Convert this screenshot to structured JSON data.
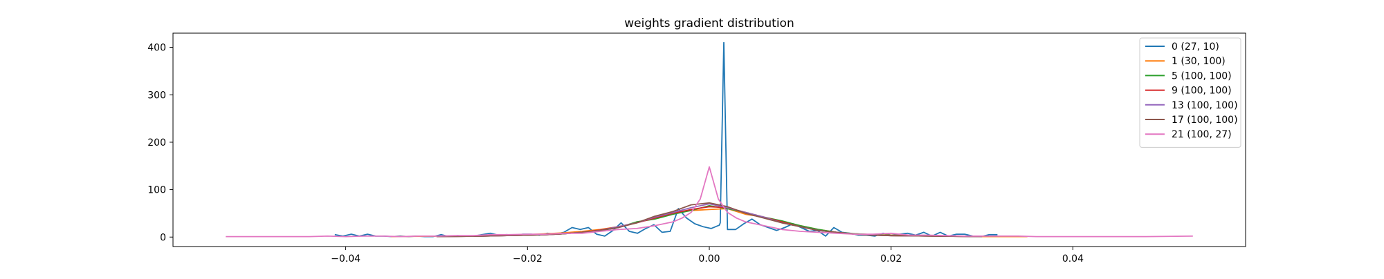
{
  "chart_data": {
    "type": "line",
    "title": "weights gradient distribution",
    "xlabel": "",
    "ylabel": "",
    "xlim": [
      -0.059,
      0.059
    ],
    "ylim": [
      -20,
      430
    ],
    "x_ticks": [
      -0.04,
      -0.02,
      0.0,
      0.02,
      0.04
    ],
    "x_tick_labels": [
      "−0.04",
      "−0.02",
      "0.00",
      "0.02",
      "0.04"
    ],
    "y_ticks": [
      0,
      100,
      200,
      300,
      400
    ],
    "y_tick_labels": [
      "0",
      "100",
      "200",
      "300",
      "400"
    ],
    "grid": false,
    "legend_position": "top-right",
    "series": [
      {
        "name": "0  (27, 10)",
        "color": "#1f77b4",
        "points": [
          [
            -0.0412,
            5
          ],
          [
            -0.0403,
            2
          ],
          [
            -0.0394,
            6
          ],
          [
            -0.0385,
            2
          ],
          [
            -0.0376,
            6
          ],
          [
            -0.0367,
            2
          ],
          [
            -0.0358,
            2
          ],
          [
            -0.0349,
            1
          ],
          [
            -0.034,
            2
          ],
          [
            -0.0331,
            1
          ],
          [
            -0.0322,
            2
          ],
          [
            -0.0313,
            1
          ],
          [
            -0.0304,
            1
          ],
          [
            -0.0295,
            5
          ],
          [
            -0.0286,
            1
          ],
          [
            -0.0277,
            3
          ],
          [
            -0.0268,
            2
          ],
          [
            -0.0259,
            2
          ],
          [
            -0.025,
            5
          ],
          [
            -0.0241,
            8
          ],
          [
            -0.0232,
            4
          ],
          [
            -0.0223,
            5
          ],
          [
            -0.0214,
            4
          ],
          [
            -0.0205,
            6
          ],
          [
            -0.0196,
            6
          ],
          [
            -0.0187,
            4
          ],
          [
            -0.0178,
            8
          ],
          [
            -0.0169,
            6
          ],
          [
            -0.016,
            10
          ],
          [
            -0.0151,
            20
          ],
          [
            -0.0142,
            16
          ],
          [
            -0.0133,
            20
          ],
          [
            -0.0124,
            6
          ],
          [
            -0.0115,
            2
          ],
          [
            -0.0106,
            14
          ],
          [
            -0.0097,
            30
          ],
          [
            -0.0088,
            12
          ],
          [
            -0.0079,
            8
          ],
          [
            -0.007,
            18
          ],
          [
            -0.0061,
            26
          ],
          [
            -0.0052,
            10
          ],
          [
            -0.0043,
            12
          ],
          [
            -0.0034,
            60
          ],
          [
            -0.0025,
            40
          ],
          [
            -0.0016,
            28
          ],
          [
            -0.0007,
            22
          ],
          [
            0.0002,
            18
          ],
          [
            0.0011,
            25
          ],
          [
            0.0012,
            30
          ],
          [
            0.0016,
            410
          ],
          [
            0.002,
            16
          ],
          [
            0.0029,
            16
          ],
          [
            0.0038,
            28
          ],
          [
            0.0047,
            38
          ],
          [
            0.0056,
            26
          ],
          [
            0.0065,
            20
          ],
          [
            0.0074,
            14
          ],
          [
            0.0083,
            20
          ],
          [
            0.0092,
            28
          ],
          [
            0.0101,
            20
          ],
          [
            0.011,
            12
          ],
          [
            0.0119,
            14
          ],
          [
            0.0128,
            2
          ],
          [
            0.0137,
            20
          ],
          [
            0.0146,
            10
          ],
          [
            0.0155,
            8
          ],
          [
            0.0164,
            4
          ],
          [
            0.0173,
            4
          ],
          [
            0.0182,
            2
          ],
          [
            0.0191,
            8
          ],
          [
            0.02,
            4
          ],
          [
            0.0209,
            6
          ],
          [
            0.0218,
            8
          ],
          [
            0.0227,
            4
          ],
          [
            0.0236,
            10
          ],
          [
            0.0245,
            2
          ],
          [
            0.0254,
            10
          ],
          [
            0.0263,
            2
          ],
          [
            0.0272,
            6
          ],
          [
            0.0281,
            6
          ],
          [
            0.029,
            2
          ],
          [
            0.0299,
            1
          ],
          [
            0.0308,
            5
          ],
          [
            0.0317,
            5
          ]
        ]
      },
      {
        "name": "1  (30, 100)",
        "color": "#ff7f0e",
        "points": [
          [
            -0.035,
            1
          ],
          [
            -0.03,
            2
          ],
          [
            -0.025,
            3
          ],
          [
            -0.02,
            5
          ],
          [
            -0.018,
            7
          ],
          [
            -0.016,
            9
          ],
          [
            -0.014,
            12
          ],
          [
            -0.012,
            16
          ],
          [
            -0.01,
            22
          ],
          [
            -0.008,
            30
          ],
          [
            -0.006,
            42
          ],
          [
            -0.004,
            50
          ],
          [
            -0.002,
            56
          ],
          [
            0.0,
            58
          ],
          [
            0.002,
            60
          ],
          [
            0.004,
            48
          ],
          [
            0.006,
            42
          ],
          [
            0.008,
            32
          ],
          [
            0.01,
            24
          ],
          [
            0.012,
            16
          ],
          [
            0.014,
            10
          ],
          [
            0.016,
            7
          ],
          [
            0.018,
            5
          ],
          [
            0.02,
            4
          ],
          [
            0.025,
            2
          ],
          [
            0.03,
            1
          ],
          [
            0.035,
            1
          ]
        ]
      },
      {
        "name": "5  (100, 100)",
        "color": "#2ca02c",
        "points": [
          [
            -0.03,
            1
          ],
          [
            -0.025,
            2
          ],
          [
            -0.02,
            4
          ],
          [
            -0.018,
            5
          ],
          [
            -0.016,
            7
          ],
          [
            -0.014,
            10
          ],
          [
            -0.012,
            14
          ],
          [
            -0.01,
            20
          ],
          [
            -0.008,
            32
          ],
          [
            -0.006,
            38
          ],
          [
            -0.004,
            48
          ],
          [
            -0.002,
            56
          ],
          [
            0.0,
            66
          ],
          [
            0.002,
            60
          ],
          [
            0.004,
            52
          ],
          [
            0.006,
            42
          ],
          [
            0.008,
            34
          ],
          [
            0.01,
            24
          ],
          [
            0.012,
            16
          ],
          [
            0.014,
            10
          ],
          [
            0.016,
            7
          ],
          [
            0.018,
            5
          ],
          [
            0.02,
            3
          ],
          [
            0.025,
            2
          ],
          [
            0.03,
            1
          ]
        ]
      },
      {
        "name": "9  (100, 100)",
        "color": "#d62728",
        "points": [
          [
            -0.03,
            1
          ],
          [
            -0.025,
            2
          ],
          [
            -0.02,
            4
          ],
          [
            -0.018,
            5
          ],
          [
            -0.016,
            7
          ],
          [
            -0.014,
            10
          ],
          [
            -0.012,
            15
          ],
          [
            -0.01,
            22
          ],
          [
            -0.008,
            30
          ],
          [
            -0.006,
            40
          ],
          [
            -0.004,
            50
          ],
          [
            -0.002,
            58
          ],
          [
            0.0,
            64
          ],
          [
            0.002,
            62
          ],
          [
            0.004,
            52
          ],
          [
            0.006,
            42
          ],
          [
            0.008,
            32
          ],
          [
            0.01,
            22
          ],
          [
            0.012,
            14
          ],
          [
            0.014,
            10
          ],
          [
            0.016,
            6
          ],
          [
            0.018,
            4
          ],
          [
            0.02,
            3
          ],
          [
            0.025,
            2
          ],
          [
            0.03,
            1
          ]
        ]
      },
      {
        "name": "13  (100, 100)",
        "color": "#9467bd",
        "points": [
          [
            -0.03,
            1
          ],
          [
            -0.025,
            2
          ],
          [
            -0.02,
            4
          ],
          [
            -0.018,
            5
          ],
          [
            -0.016,
            7
          ],
          [
            -0.014,
            10
          ],
          [
            -0.012,
            14
          ],
          [
            -0.01,
            22
          ],
          [
            -0.008,
            30
          ],
          [
            -0.006,
            42
          ],
          [
            -0.004,
            52
          ],
          [
            -0.002,
            62
          ],
          [
            0.0,
            70
          ],
          [
            0.002,
            62
          ],
          [
            0.004,
            52
          ],
          [
            0.006,
            42
          ],
          [
            0.008,
            30
          ],
          [
            0.01,
            22
          ],
          [
            0.012,
            14
          ],
          [
            0.014,
            10
          ],
          [
            0.016,
            6
          ],
          [
            0.018,
            4
          ],
          [
            0.02,
            3
          ],
          [
            0.025,
            2
          ],
          [
            0.03,
            1
          ]
        ]
      },
      {
        "name": "17  (100, 100)",
        "color": "#8c564b",
        "points": [
          [
            -0.03,
            1
          ],
          [
            -0.025,
            2
          ],
          [
            -0.02,
            4
          ],
          [
            -0.018,
            5
          ],
          [
            -0.016,
            7
          ],
          [
            -0.014,
            10
          ],
          [
            -0.012,
            14
          ],
          [
            -0.01,
            20
          ],
          [
            -0.008,
            30
          ],
          [
            -0.006,
            44
          ],
          [
            -0.004,
            54
          ],
          [
            -0.002,
            68
          ],
          [
            0.0,
            72
          ],
          [
            0.002,
            64
          ],
          [
            0.004,
            50
          ],
          [
            0.006,
            40
          ],
          [
            0.008,
            30
          ],
          [
            0.01,
            22
          ],
          [
            0.012,
            14
          ],
          [
            0.014,
            10
          ],
          [
            0.016,
            6
          ],
          [
            0.018,
            4
          ],
          [
            0.02,
            3
          ],
          [
            0.025,
            2
          ],
          [
            0.03,
            1
          ]
        ]
      },
      {
        "name": "21  (100, 27)",
        "color": "#e377c2",
        "points": [
          [
            -0.0532,
            1
          ],
          [
            -0.05,
            1
          ],
          [
            -0.047,
            1
          ],
          [
            -0.044,
            1
          ],
          [
            -0.042,
            2
          ],
          [
            -0.04,
            1
          ],
          [
            -0.038,
            2
          ],
          [
            -0.036,
            2
          ],
          [
            -0.034,
            1
          ],
          [
            -0.032,
            2
          ],
          [
            -0.03,
            2
          ],
          [
            -0.028,
            3
          ],
          [
            -0.026,
            3
          ],
          [
            -0.024,
            5
          ],
          [
            -0.022,
            5
          ],
          [
            -0.02,
            6
          ],
          [
            -0.018,
            6
          ],
          [
            -0.016,
            8
          ],
          [
            -0.014,
            8
          ],
          [
            -0.012,
            12
          ],
          [
            -0.01,
            16
          ],
          [
            -0.008,
            18
          ],
          [
            -0.006,
            24
          ],
          [
            -0.004,
            32
          ],
          [
            -0.003,
            40
          ],
          [
            -0.002,
            52
          ],
          [
            -0.001,
            80
          ],
          [
            0.0,
            148
          ],
          [
            0.001,
            80
          ],
          [
            0.002,
            52
          ],
          [
            0.003,
            40
          ],
          [
            0.004,
            32
          ],
          [
            0.006,
            24
          ],
          [
            0.008,
            16
          ],
          [
            0.01,
            12
          ],
          [
            0.012,
            10
          ],
          [
            0.014,
            8
          ],
          [
            0.016,
            6
          ],
          [
            0.018,
            6
          ],
          [
            0.02,
            8
          ],
          [
            0.022,
            4
          ],
          [
            0.024,
            4
          ],
          [
            0.026,
            3
          ],
          [
            0.028,
            2
          ],
          [
            0.03,
            2
          ],
          [
            0.032,
            2
          ],
          [
            0.034,
            2
          ],
          [
            0.036,
            1
          ],
          [
            0.04,
            1
          ],
          [
            0.044,
            1
          ],
          [
            0.048,
            1
          ],
          [
            0.0532,
            2
          ]
        ]
      }
    ]
  }
}
